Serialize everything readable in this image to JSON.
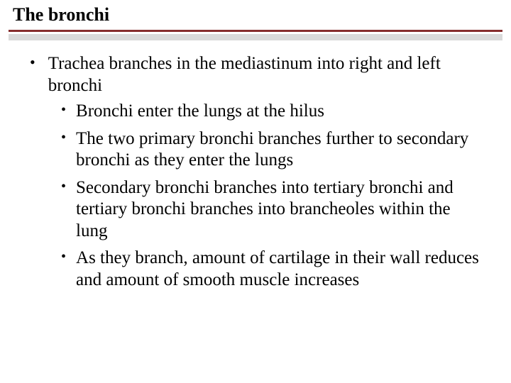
{
  "title": "The bronchi",
  "colors": {
    "title_underline": "#862d2d",
    "separator_bar": "#d9d9d9",
    "text": "#000000",
    "background": "#ffffff"
  },
  "typography": {
    "title_fontsize": 26,
    "body_fontsize": 25,
    "font_family": "Georgia, Times New Roman, serif"
  },
  "bullets": {
    "level1": [
      {
        "text": "Trachea branches in the mediastinum into right and left bronchi"
      }
    ],
    "level2": [
      {
        "text": "Bronchi enter the lungs at the hilus"
      },
      {
        "text": "The two primary bronchi branches further to secondary bronchi as they enter the lungs"
      },
      {
        "text": "Secondary bronchi branches into tertiary bronchi and tertiary bronchi branches  into brancheoles within the lung"
      },
      {
        "text": "As they branch, amount of cartilage in their wall reduces and amount of smooth muscle increases"
      }
    ]
  }
}
